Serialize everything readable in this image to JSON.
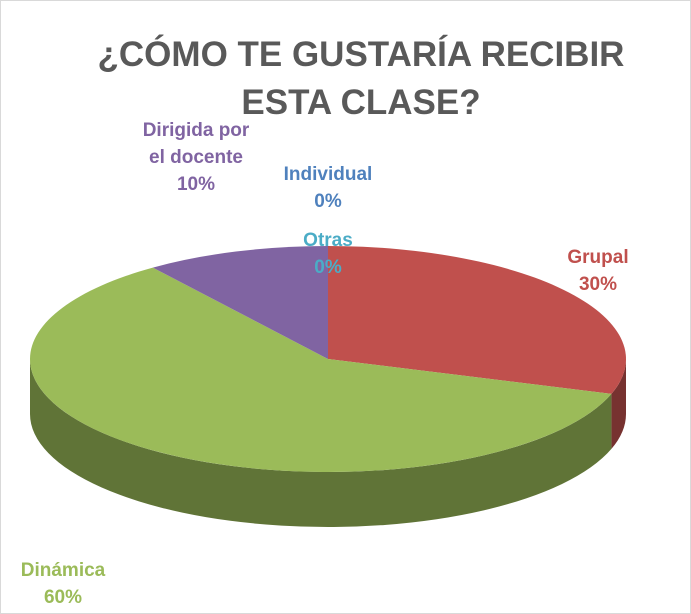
{
  "chart_data": {
    "type": "pie3d",
    "title": "¿CÓMO TE GUSTARÍA RECIBIR ESTA CLASE?",
    "categories": [
      "Individual",
      "Grupal",
      "Dinámica",
      "Dirigida por el docente",
      "Otras"
    ],
    "values": [
      0,
      30,
      60,
      10,
      0
    ],
    "value_labels": [
      "0%",
      "30%",
      "60%",
      "10%",
      "0%"
    ],
    "colors": [
      "#4f81bd",
      "#c0504d",
      "#9bbb59",
      "#8064a2",
      "#4bacc6"
    ]
  }
}
